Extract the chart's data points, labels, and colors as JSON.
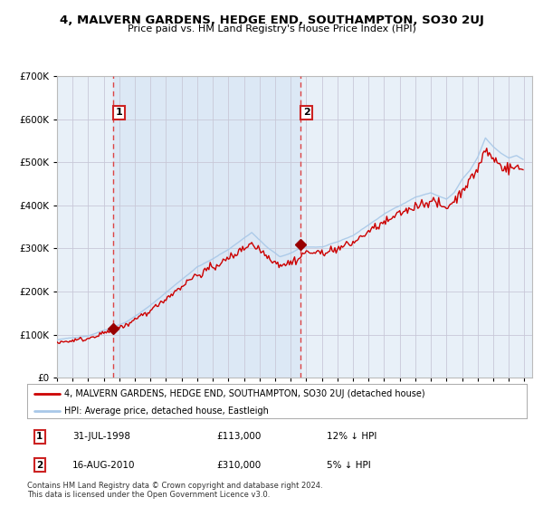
{
  "title": "4, MALVERN GARDENS, HEDGE END, SOUTHAMPTON, SO30 2UJ",
  "subtitle": "Price paid vs. HM Land Registry's House Price Index (HPI)",
  "legend_line1": "4, MALVERN GARDENS, HEDGE END, SOUTHAMPTON, SO30 2UJ (detached house)",
  "legend_line2": "HPI: Average price, detached house, Eastleigh",
  "footnote": "Contains HM Land Registry data © Crown copyright and database right 2024.\nThis data is licensed under the Open Government Licence v3.0.",
  "hpi_color": "#a8c8e8",
  "price_color": "#cc0000",
  "vline_color": "#dd4444",
  "marker_color": "#990000",
  "shade_color": "#dce8f5",
  "grid_color": "#c8c8d8",
  "plot_bg_color": "#e8f0f8",
  "fig_bg_color": "#ffffff",
  "ylim": [
    0,
    700000
  ],
  "yticks": [
    0,
    100000,
    200000,
    300000,
    400000,
    500000,
    600000,
    700000
  ],
  "ytick_labels": [
    "£0",
    "£100K",
    "£200K",
    "£300K",
    "£400K",
    "£500K",
    "£600K",
    "£700K"
  ],
  "xstart_year": 1995,
  "xend_year": 2025,
  "purchase1_date_num": 1998.583,
  "purchase1_price": 113000,
  "purchase1_label": "1",
  "purchase1_text_date": "31-JUL-1998",
  "purchase1_text_price": "£113,000",
  "purchase1_text_hpi": "12% ↓ HPI",
  "purchase2_date_num": 2010.625,
  "purchase2_price": 310000,
  "purchase2_label": "2",
  "purchase2_text_date": "16-AUG-2010",
  "purchase2_text_price": "£310,000",
  "purchase2_text_hpi": "5% ↓ HPI"
}
